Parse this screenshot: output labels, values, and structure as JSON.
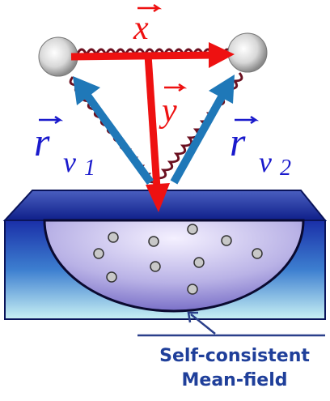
{
  "labels": {
    "x": "x",
    "y": "y",
    "r_v1": {
      "symbol": "r",
      "subscript": "v",
      "index": "1"
    },
    "r_v2": {
      "symbol": "r",
      "subscript": "v",
      "index": "2"
    }
  },
  "caption": [
    "Self-consistent",
    "Mean-field"
  ]
}
